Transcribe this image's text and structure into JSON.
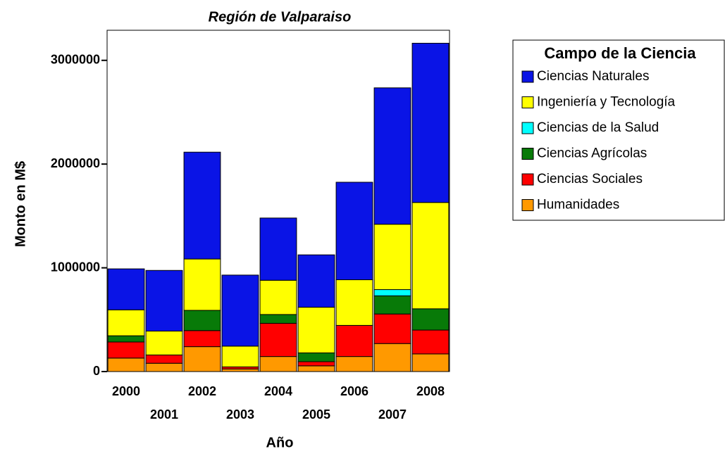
{
  "chart_data": {
    "type": "stacked_bar",
    "title": "Región de Valparaiso",
    "x_label": "Año",
    "y_label": "Monto en M$",
    "legend_title": "Campo de la Ciencia",
    "legend_position": "right",
    "categories": [
      "2000",
      "2001",
      "2002",
      "2003",
      "2004",
      "2005",
      "2006",
      "2007",
      "2008"
    ],
    "series": [
      {
        "name": "Ciencias Naturales",
        "color": "#0a14e6",
        "values": [
          395000,
          585000,
          1030000,
          685000,
          600000,
          505000,
          940000,
          1315000,
          1535000
        ]
      },
      {
        "name": "Ingeniería y Tecnología",
        "color": "#ffff00",
        "values": [
          250000,
          230000,
          495000,
          200000,
          330000,
          440000,
          440000,
          630000,
          1025000
        ]
      },
      {
        "name": "Ciencias de la Salud",
        "color": "#00ffff",
        "values": [
          0,
          0,
          0,
          0,
          0,
          0,
          0,
          60000,
          0
        ]
      },
      {
        "name": "Ciencias Agrícolas",
        "color": "#087a08",
        "values": [
          60000,
          0,
          195000,
          0,
          85000,
          85000,
          0,
          175000,
          205000
        ]
      },
      {
        "name": "Ciencias Sociales",
        "color": "#ff0000",
        "values": [
          155000,
          80000,
          155000,
          20000,
          320000,
          40000,
          300000,
          285000,
          230000
        ]
      },
      {
        "name": "Humanidades",
        "color": "#ff9900",
        "values": [
          130000,
          80000,
          240000,
          25000,
          145000,
          55000,
          145000,
          270000,
          170000
        ]
      }
    ],
    "ylim": [
      0,
      3290000
    ],
    "yticks": [
      0,
      1000000,
      2000000,
      3000000
    ]
  }
}
